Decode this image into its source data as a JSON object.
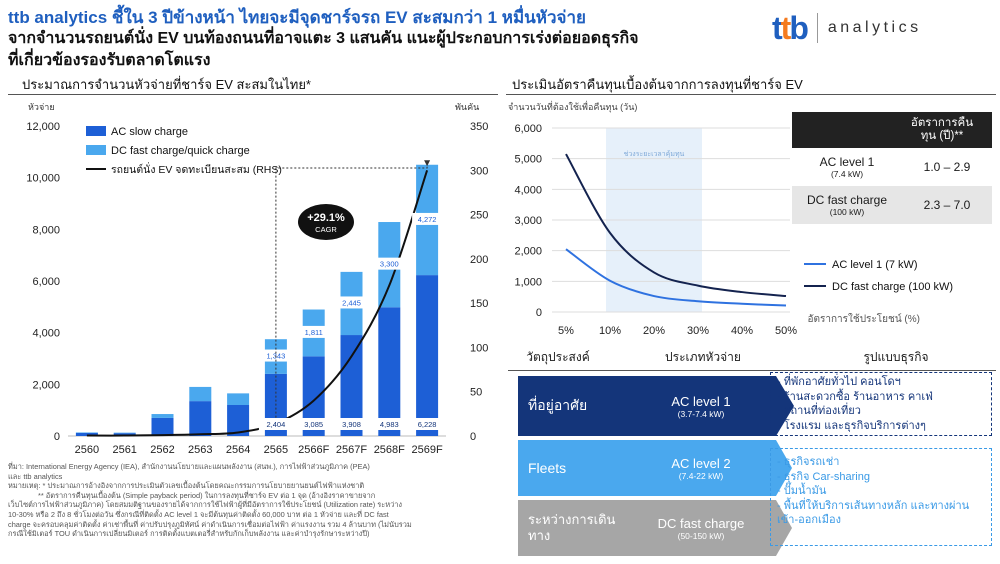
{
  "header": {
    "headline": "ttb analytics ชี้ใน 3 ปีข้างหน้า ไทยจะมีจุดชาร์จรถ EV สะสมกว่า 1 หมื่นหัวจ่าย",
    "sub1": "จากจำนวนรถยนต์นั่ง EV บนท้องถนนที่อาจแตะ 3 แสนคัน แนะผู้ประกอบการเร่งต่อยอดธุรกิจ",
    "sub2": "ที่เกี่ยวข้องรองรับตลาดโตแรง",
    "logo_mark": "ttb",
    "logo_word": "analytics",
    "brand_blue": "#1f5fbf",
    "brand_orange": "#f47b20"
  },
  "left_title": "ประมาณการจำนวนหัวจ่ายที่ชาร์จ EV สะสมในไทย*",
  "right_title": "ประเมินอัตราคืนทุนเบื้องต้นจากการลงทุนที่ชาร์จ EV",
  "chart_data": [
    {
      "type": "bar",
      "left_unit": "หัวจ่าย",
      "right_unit": "พันคัน",
      "categories": [
        "2560",
        "2561",
        "2562",
        "2563",
        "2564",
        "2565",
        "2566F",
        "2567F",
        "2568F",
        "2569F"
      ],
      "series": [
        {
          "name": "AC slow charge",
          "color": "#1d5fd6",
          "values": [
            120,
            110,
            700,
            1350,
            1200,
            2404,
            3085,
            3908,
            4983,
            6228
          ]
        },
        {
          "name": "DC fast charge/quick charge",
          "color": "#4aa8ee",
          "values": [
            20,
            20,
            150,
            550,
            450,
            1343,
            1811,
            2445,
            3300,
            4272
          ]
        },
        {
          "name": "รถยนต์นั่ง EV จดทะเบียนสะสม (RHS)",
          "color": "#111111",
          "values": [
            0.5,
            0.5,
            1,
            2,
            4,
            14,
            40,
            90,
            170,
            300
          ]
        }
      ],
      "labels_ac": [
        "",
        "",
        "",
        "",
        "",
        "2,404",
        "3,085",
        "3,908",
        "4,983",
        "6,228"
      ],
      "labels_dc": [
        "",
        "",
        "",
        "",
        "",
        "1,343",
        "1,811",
        "2,445",
        "3,300",
        "4,272"
      ],
      "ylim": [
        0,
        12000
      ],
      "yticks": [
        "0",
        "2,000",
        "4,000",
        "6,000",
        "8,000",
        "10,000",
        "12,000"
      ],
      "y2lim": [
        0,
        350
      ],
      "y2ticks": [
        "0",
        "50",
        "100",
        "150",
        "200",
        "250",
        "300",
        "350"
      ],
      "cagr_value": "+29.1%",
      "cagr_label": "CAGR",
      "legend": "top-left"
    },
    {
      "type": "line",
      "ylabel": "จำนวนวันที่ต้องใช้เพื่อคืนทุน (วัน)",
      "xlabel": "อัตราการใช้ประโยชน์ (%)",
      "x": [
        "5%",
        "10%",
        "20%",
        "30%",
        "40%",
        "50%"
      ],
      "ylim": [
        0,
        6000
      ],
      "yticks": [
        "0",
        "1,000",
        "2,000",
        "3,000",
        "4,000",
        "5,000",
        "6,000"
      ],
      "shade_label": "ช่วงระยะเวลาคุ้มทุน",
      "series": [
        {
          "name": "AC level 1 (7 kW)",
          "color": "#2f72e0",
          "values": [
            2050,
            1020,
            520,
            350,
            270,
            210
          ]
        },
        {
          "name": "DC fast charge (100 kW)",
          "color": "#14234f",
          "values": [
            5150,
            2580,
            1290,
            860,
            650,
            520
          ]
        }
      ],
      "legend": "right"
    }
  ],
  "payback_table": {
    "header": "อัตราการคืนทุน (ปี)**",
    "rows": [
      {
        "name": "AC level 1",
        "sub": "(7.4 kW)",
        "value": "1.0 – 2.9"
      },
      {
        "name": "DC fast charge",
        "sub": "(100 kW)",
        "value": "2.3 – 7.0"
      }
    ]
  },
  "biz_table": {
    "headers": [
      "วัตถุประสงค์",
      "ประเภทหัวจ่าย",
      "รูปแบบธุรกิจ"
    ],
    "rows": [
      {
        "purpose": "ที่อยู่อาศัย",
        "type": "AC level 1",
        "spec": "(3.7-7.4 kW)",
        "color": "#14357a",
        "items": [
          "ที่พักอาศัยทั่วไป คอนโดฯ",
          "ร้านสะดวกซื้อ ร้านอาหาร คาเฟ่",
          "สถานที่ท่องเที่ยว",
          "โรงแรม และธุรกิจบริการต่างๆ"
        ]
      },
      {
        "purpose": "Fleets",
        "type": "AC level 2",
        "spec": "(7.4-22 kW)",
        "color": "#4aa8ee",
        "items": [
          "ธุรกิจรถเช่า",
          "ธุรกิจ Car-sharing",
          "ปั๊มน้ำมัน",
          "พื้นที่ให้บริการเส้นทางหลัก และทางผ่านเข้า-ออกเมือง"
        ]
      },
      {
        "purpose": "ระหว่างการเดินทาง",
        "type": "DC fast charge",
        "spec": "(50-150 kW)",
        "color": "#a6a6a6",
        "items": []
      }
    ],
    "item_color_1": "#14357a",
    "item_color_2": "#3a9ae6"
  },
  "notes": {
    "source": "ที่มา: International Energy Agency (IEA), สำนักงานนโยบายและแผนพลังงาน (สนพ.), การไฟฟ้าส่วนภูมิภาค (PEA)",
    "source2": "และ ttb analytics",
    "note1": "หมายเหตุ: * ประมาณการอ้างอิงจากการประเมินตัวเลขเบื้องต้นโดยคณะกรรมการนโยบายยานยนต์ไฟฟ้าแห่งชาติ",
    "note2": "** อัตราการคืนทุนเบื้องต้น (Simple payback period) ในการลงทุนที่ชาร์จ EV ต่อ 1 จุด (อ้างอิงราคาขายจาก",
    "note3": "เว็บไซต์การไฟฟ้าส่วนภูมิภาค) โดยสมมติฐานของรายได้จากการใช้ไฟฟ้าผู้ที่มีอัตราการใช้ประโยชน์ (Utilization rate) ระหว่าง",
    "note4": "10-30% หรือ 2 ถึง 8 ชั่วโมงต่อวัน ซึ่งกรณีที่ติดตั้ง AC level 1 จะมีต้นทุนค่าติดตั้ง 60,000 บาท ต่อ 1 หัวจ่าย และที่ DC fast",
    "note5": "charge จะครอบคลุมค่าติดตั้ง ค่าเช่าพื้นที่ ค่าปรับปรุงภูมิทัศน์ ค่าดำเนินการเชื่อมต่อไฟฟ้า ค่าแรงงาน รวม 4 ล้านบาท (ไม่นับรวม",
    "note6": "กรณีใช้มิเตอร์ TOU ดำเนินการเปลี่ยนมิเตอร์ การติดตั้งแบตเตอรี่สำหรับกักเก็บพลังงาน และค่าบำรุงรักษาระหว่างปี)"
  }
}
